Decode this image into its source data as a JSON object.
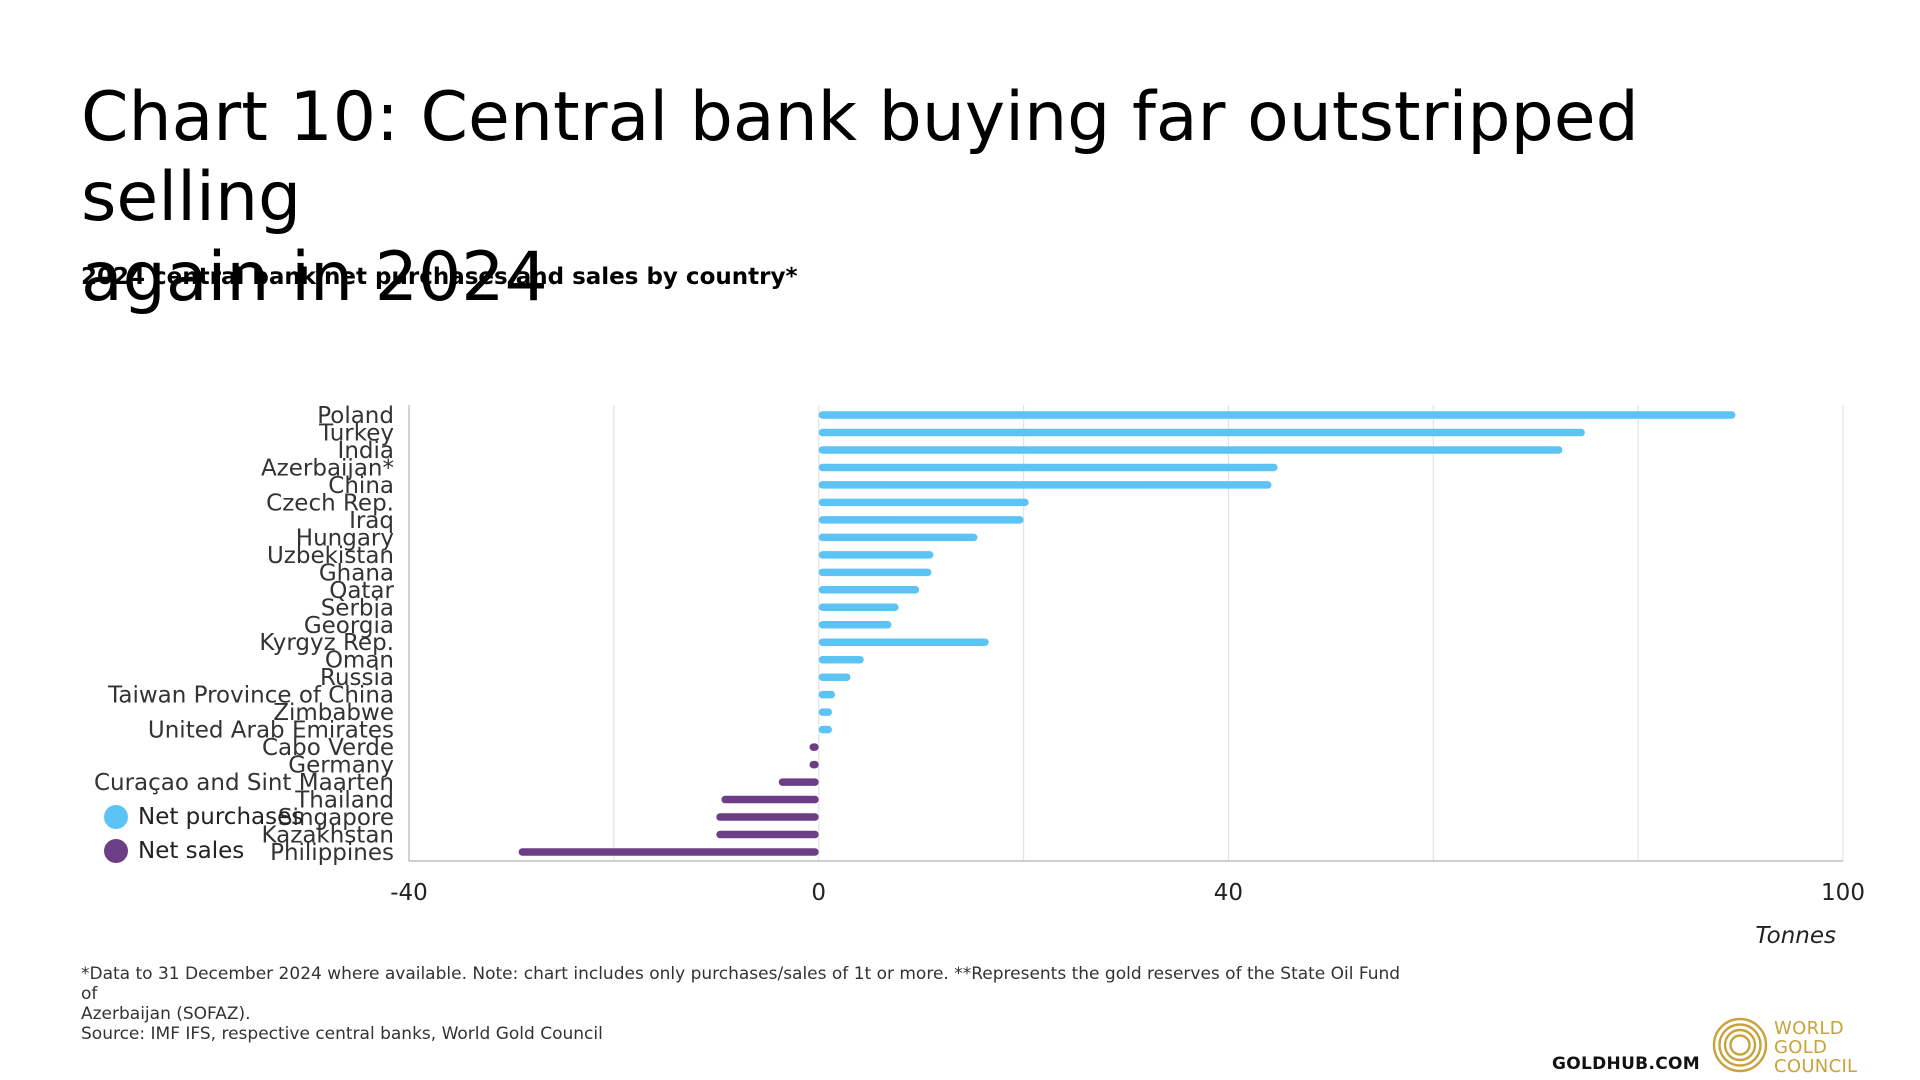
{
  "title_lines": [
    "Chart 10: Central bank buying far outstripped selling",
    "again in 2024"
  ],
  "subtitle": "2024 central bank net purchases and sales by country*",
  "footnote": {
    "line1": "*Data to 31 December 2024 where available. Note: chart includes only purchases/sales of 1t or more. **Represents the gold reserves of the State Oil Fund of",
    "line2": "Azerbaijan (SOFAZ).",
    "line3": "Source: IMF IFS, respective central banks, World Gold Council"
  },
  "goldhub": "GOLDHUB.COM",
  "logo": {
    "name": "world-gold-council-logo",
    "lines": [
      "WORLD",
      "GOLD",
      "COUNCIL"
    ]
  },
  "colors": {
    "purchases": "#5bc4f5",
    "sales": "#6b3e86",
    "gridline": "#e3e3e3",
    "axis": "#bfbfbf",
    "logo_gold": "#c9a23a"
  },
  "legend": [
    {
      "label": "Net purchases",
      "color_key": "purchases"
    },
    {
      "label": "Net sales",
      "color_key": "sales"
    }
  ],
  "chart_data": {
    "type": "bar",
    "orientation": "horizontal",
    "categories": [
      "Poland",
      "Turkey",
      "India",
      "Azerbaijan*",
      "China",
      "Czech Rep.",
      "Iraq",
      "Hungary",
      "Uzbekistan",
      "Ghana",
      "Qatar",
      "Serbia",
      "Georgia",
      "Kyrgyz Rep.",
      "Oman",
      "Russia",
      "Taiwan Province of China",
      "Zimbabwe",
      "United Arab Emirates",
      "Cabo Verde",
      "Germany",
      "Curaçao and Sint Maarten",
      "Thailand",
      "Singapore",
      "Kazakhstan",
      "Philippines"
    ],
    "values": [
      89.5,
      74.8,
      72.6,
      44.8,
      44.2,
      20.5,
      20.0,
      15.5,
      11.2,
      11.0,
      9.8,
      7.8,
      7.1,
      16.6,
      4.4,
      3.1,
      1.6,
      1.3,
      1.3,
      -0.9,
      -0.9,
      -3.9,
      -9.5,
      -10.0,
      -10.0,
      -29.3
    ],
    "series": [
      {
        "name": "Net purchases",
        "color_key": "purchases"
      },
      {
        "name": "Net sales",
        "color_key": "sales"
      }
    ],
    "xlim": [
      -40,
      100
    ],
    "x_ticks": [
      -40,
      0,
      40,
      100
    ],
    "x_gridlines": [
      -20,
      0,
      20,
      40,
      60,
      80,
      100
    ],
    "x_tick_labels": [
      "-40",
      "0",
      "40",
      "100"
    ],
    "xlabel": "Tonnes",
    "ylabel": "",
    "grid": "vertical",
    "legend_position": "bottom-left"
  }
}
